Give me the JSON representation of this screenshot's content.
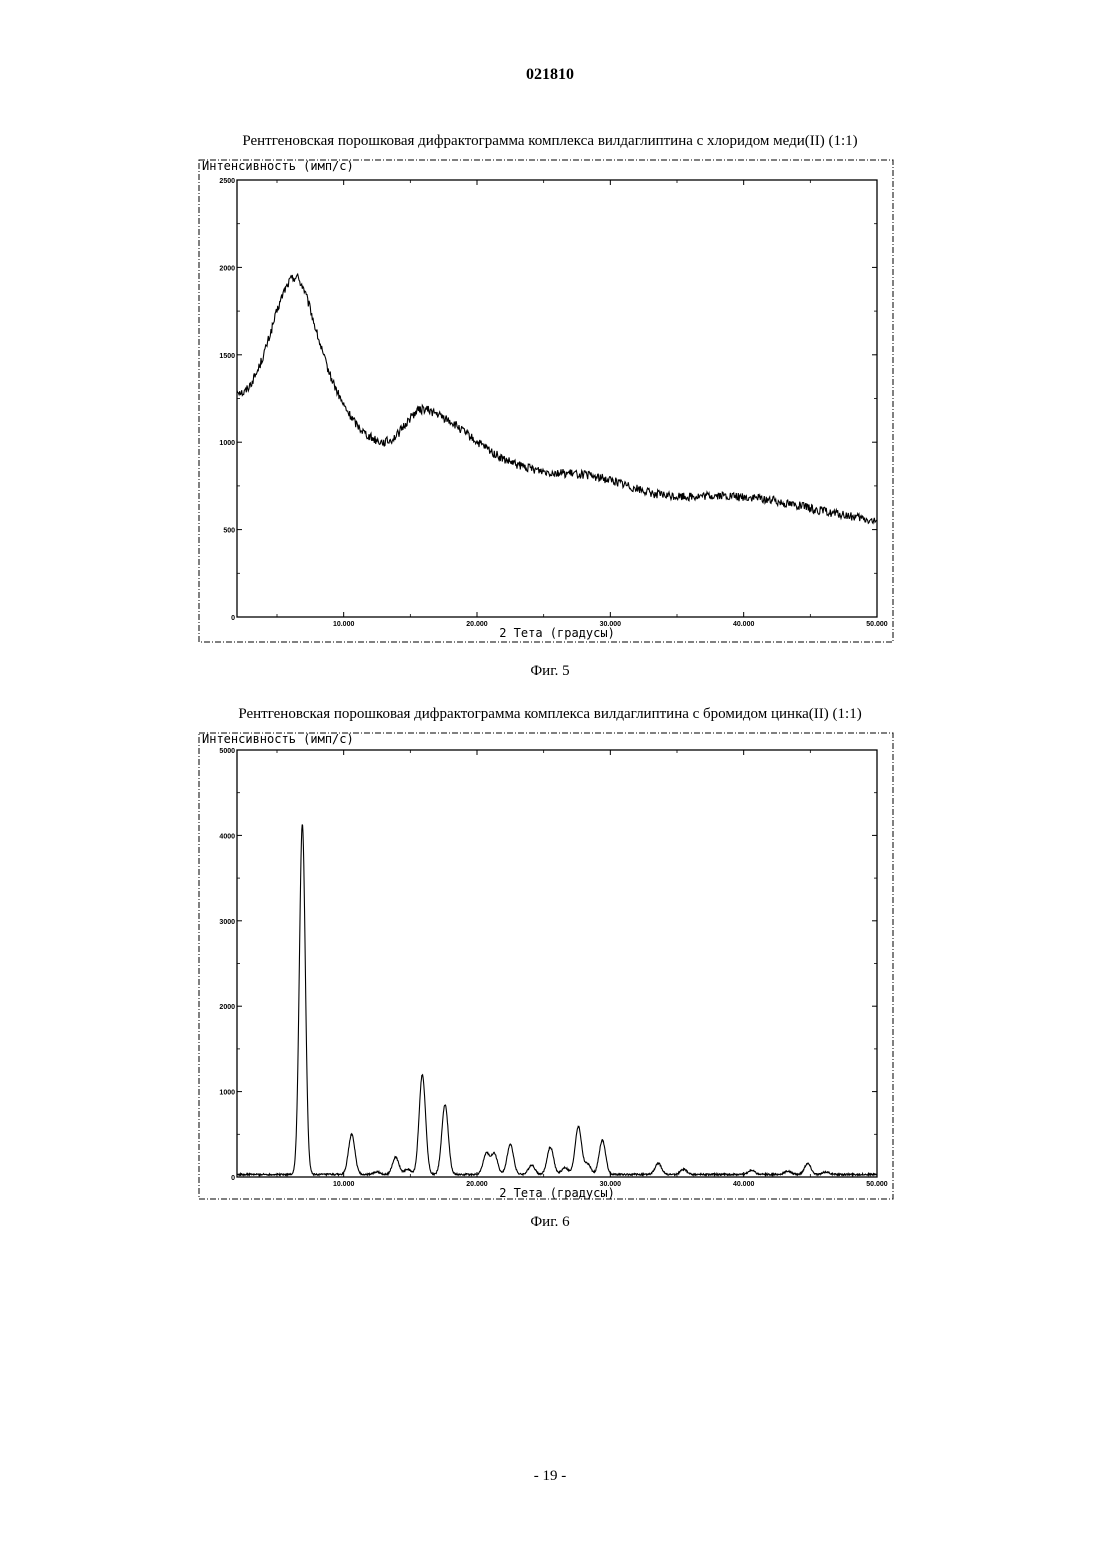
{
  "page": {
    "doc_number": "021810",
    "page_number": "- 19 -"
  },
  "chart_data": [
    {
      "type": "line",
      "title": "Рентгеновская порошковая дифрактограмма комплекса вилдаглиптина с хлоридом меди(II) (1:1)",
      "ylabel": "Интенсивность (имп/с)",
      "xlabel": "2 Тета (градусы)",
      "figure_label": "Фиг. 5",
      "xlim": [
        2,
        50
      ],
      "ylim": [
        0,
        2500
      ],
      "xticks": [
        10,
        20,
        30,
        40,
        50
      ],
      "xtick_labels": [
        "10.000",
        "20.000",
        "30.000",
        "40.000",
        "50.000"
      ],
      "yticks": [
        0,
        500,
        1000,
        1500,
        2000,
        2500
      ],
      "ytick_labels": [
        "0",
        "500",
        "1000",
        "1500",
        "2000",
        "2500"
      ],
      "grid": false,
      "series": [
        {
          "x": [
            2,
            2.5,
            3,
            3.5,
            4,
            4.5,
            5,
            5.5,
            6,
            6.5,
            7,
            7.5,
            8,
            8.5,
            9,
            9.5,
            10,
            10.5,
            11,
            11.5,
            12,
            12.5,
            13,
            13.5,
            14,
            14.5,
            15,
            15.5,
            16,
            16.5,
            17,
            17.5,
            18,
            18.5,
            19,
            19.5,
            20,
            21,
            22,
            23,
            24,
            25,
            26,
            27,
            28,
            29,
            30,
            31,
            32,
            33,
            34,
            35,
            36,
            37,
            38,
            39,
            40,
            41,
            42,
            43,
            44,
            45,
            46,
            47,
            48,
            49,
            50
          ],
          "values": [
            1300,
            1280,
            1330,
            1400,
            1500,
            1620,
            1750,
            1860,
            1930,
            1950,
            1880,
            1760,
            1620,
            1490,
            1380,
            1290,
            1210,
            1150,
            1100,
            1060,
            1030,
            1010,
            1000,
            1010,
            1040,
            1090,
            1140,
            1180,
            1190,
            1180,
            1160,
            1140,
            1120,
            1090,
            1060,
            1030,
            1000,
            950,
            900,
            870,
            850,
            835,
            825,
            820,
            815,
            800,
            785,
            760,
            735,
            710,
            695,
            690,
            690,
            690,
            695,
            690,
            685,
            680,
            670,
            655,
            640,
            620,
            605,
            590,
            575,
            560,
            540
          ]
        }
      ]
    },
    {
      "type": "line",
      "title": "Рентгеновская порошковая дифрактограмма комплекса вилдаглиптина с бромидом цинка(II) (1:1)",
      "ylabel": "Интенсивность (имп/с)",
      "xlabel": "2 Тета (градусы)",
      "figure_label": "Фиг. 6",
      "xlim": [
        2,
        50
      ],
      "ylim": [
        0,
        5000
      ],
      "xticks": [
        10,
        20,
        30,
        40,
        50
      ],
      "xtick_labels": [
        "10.000",
        "20.000",
        "30.000",
        "40.000",
        "50.000"
      ],
      "yticks": [
        0,
        1000,
        2000,
        3000,
        4000,
        5000
      ],
      "ytick_labels": [
        "0",
        "1000",
        "2000",
        "3000",
        "4000",
        "5000"
      ],
      "grid": false,
      "baseline": 30,
      "peaks": [
        {
          "x": 6.9,
          "height": 4100
        },
        {
          "x": 10.6,
          "height": 470
        },
        {
          "x": 12.5,
          "height": 30
        },
        {
          "x": 13.9,
          "height": 200
        },
        {
          "x": 14.8,
          "height": 60
        },
        {
          "x": 15.9,
          "height": 1170
        },
        {
          "x": 17.6,
          "height": 820
        },
        {
          "x": 20.7,
          "height": 240
        },
        {
          "x": 21.3,
          "height": 240
        },
        {
          "x": 22.5,
          "height": 350
        },
        {
          "x": 24.1,
          "height": 110
        },
        {
          "x": 25.5,
          "height": 320
        },
        {
          "x": 26.6,
          "height": 80
        },
        {
          "x": 27.6,
          "height": 560
        },
        {
          "x": 28.3,
          "height": 120
        },
        {
          "x": 29.4,
          "height": 400
        },
        {
          "x": 33.6,
          "height": 130
        },
        {
          "x": 35.5,
          "height": 60
        },
        {
          "x": 40.6,
          "height": 50
        },
        {
          "x": 43.3,
          "height": 40
        },
        {
          "x": 44.8,
          "height": 130
        },
        {
          "x": 46.2,
          "height": 30
        }
      ]
    }
  ]
}
